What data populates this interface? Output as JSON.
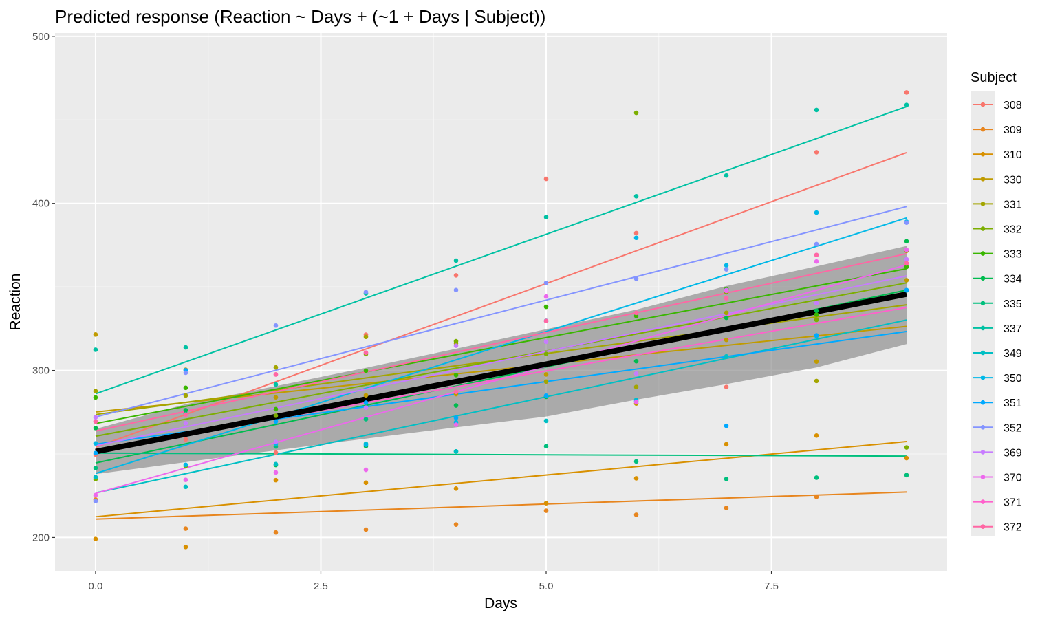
{
  "chart_data": {
    "type": "line",
    "title": "Predicted response (Reaction ~ Days + (~1 + Days | Subject))",
    "xlabel": "Days",
    "ylabel": "Reaction",
    "xlim": [
      -0.45,
      9.45
    ],
    "ylim": [
      180,
      502
    ],
    "x_ticks": [
      0,
      2.5,
      5,
      7.5
    ],
    "x_tick_labels": [
      "0.0",
      "2.5",
      "5.0",
      "7.5"
    ],
    "y_ticks": [
      200,
      300,
      400,
      500
    ],
    "y_tick_labels": [
      "200",
      "300",
      "400",
      "500"
    ],
    "grid": true,
    "legend_position": "right",
    "legend_title": "Subject",
    "x": [
      0,
      1,
      2,
      3,
      4,
      5,
      6,
      7,
      8,
      9
    ],
    "fixed_effect": {
      "intercept": 251.4,
      "slope": 10.47
    },
    "confidence_band": {
      "lower": [
        237.9,
        245.1,
        252.2,
        259.2,
        265.9,
        272.4,
        282.5,
        291.8,
        301.8,
        315.8
      ],
      "upper": [
        264.9,
        279.8,
        290.6,
        301.6,
        313.0,
        324.7,
        336.4,
        350.5,
        362.3,
        374.5
      ]
    },
    "series": [
      {
        "name": "308",
        "color": "#F8766D",
        "intercept": 254.0,
        "slope": 19.6,
        "values": [
          249.6,
          258.7,
          250.8,
          321.4,
          356.9,
          414.7,
          382.2,
          290.1,
          430.6,
          466.4
        ]
      },
      {
        "name": "309",
        "color": "#E7851E",
        "intercept": 211.0,
        "slope": 1.8,
        "values": [
          222.7,
          205.3,
          203.0,
          204.7,
          207.7,
          216.0,
          213.6,
          217.7,
          224.3,
          237.3
        ]
      },
      {
        "name": "310",
        "color": "#D89000",
        "intercept": 212.4,
        "slope": 5.0,
        "values": [
          199.1,
          194.3,
          234.3,
          232.8,
          229.3,
          220.5,
          235.4,
          255.8,
          261.0,
          247.5
        ]
      },
      {
        "name": "330",
        "color": "#C09B00",
        "intercept": 275.1,
        "slope": 5.7,
        "values": [
          321.5,
          300.4,
          283.9,
          285.1,
          285.8,
          297.6,
          280.2,
          318.3,
          305.3,
          354.0
        ]
      },
      {
        "name": "331",
        "color": "#A3A500",
        "intercept": 273.6,
        "slope": 7.3,
        "values": [
          287.6,
          285.0,
          301.8,
          320.1,
          316.3,
          293.3,
          290.1,
          334.5,
          293.7,
          371.6
        ]
      },
      {
        "name": "332",
        "color": "#7CAE00",
        "intercept": 260.6,
        "slope": 10.2,
        "values": [
          234.9,
          242.8,
          272.9,
          309.8,
          317.5,
          309.9,
          454.2,
          346.8,
          330.3,
          253.9
        ]
      },
      {
        "name": "333",
        "color": "#39B600",
        "intercept": 268.2,
        "slope": 10.3,
        "values": [
          283.8,
          289.6,
          276.8,
          299.8,
          297.2,
          338.1,
          332.6,
          348.8,
          333.4,
          362.0
        ]
      },
      {
        "name": "334",
        "color": "#00BB4E",
        "intercept": 244.6,
        "slope": 11.5,
        "values": [
          265.5,
          276.2,
          243.4,
          254.7,
          279.0,
          284.2,
          305.5,
          331.5,
          335.8,
          377.3
        ]
      },
      {
        "name": "335",
        "color": "#00BF7D",
        "intercept": 250.5,
        "slope": -0.2,
        "values": [
          241.6,
          273.9,
          254.5,
          270.8,
          251.5,
          254.6,
          245.5,
          235.0,
          235.8,
          237.3
        ]
      },
      {
        "name": "337",
        "color": "#00C1A3",
        "intercept": 286.0,
        "slope": 19.1,
        "values": [
          312.4,
          313.8,
          291.6,
          346.1,
          365.7,
          391.8,
          404.3,
          416.7,
          455.9,
          458.9
        ]
      },
      {
        "name": "349",
        "color": "#00BFC4",
        "intercept": 226.7,
        "slope": 11.5,
        "values": [
          236.1,
          230.3,
          243.9,
          256.1,
          251.5,
          269.8,
          282.4,
          308.4,
          320.7,
          347.9
        ]
      },
      {
        "name": "350",
        "color": "#00B8E7",
        "intercept": 238.3,
        "slope": 17.0,
        "values": [
          256.3,
          243.5,
          256.0,
          255.5,
          268.9,
          329.7,
          379.4,
          362.9,
          394.5,
          389.0
        ]
      },
      {
        "name": "351",
        "color": "#00A9FF",
        "intercept": 255.8,
        "slope": 7.5,
        "values": [
          250.5,
          300.1,
          269.4,
          280.7,
          271.6,
          284.9,
          281.6,
          266.8,
          321.0,
          348.1
        ]
      },
      {
        "name": "352",
        "color": "#8494FF",
        "intercept": 272.1,
        "slope": 14.0,
        "values": [
          221.7,
          298.6,
          326.9,
          346.9,
          348.1,
          352.4,
          354.9,
          360.5,
          375.6,
          388.5
        ]
      },
      {
        "name": "369",
        "color": "#C77CFF",
        "intercept": 254.9,
        "slope": 11.3,
        "values": [
          271.9,
          268.4,
          257.2,
          277.7,
          314.8,
          317.2,
          298.1,
          348.1,
          340.3,
          366.5
        ]
      },
      {
        "name": "370",
        "color": "#ED68ED",
        "intercept": 226.4,
        "slope": 15.2,
        "values": [
          225.3,
          234.5,
          238.9,
          240.5,
          267.5,
          344.2,
          281.1,
          347.6,
          365.2,
          372.2
        ]
      },
      {
        "name": "371",
        "color": "#FF61CC",
        "intercept": 252.2,
        "slope": 9.5,
        "values": [
          269.4,
          273.5,
          297.6,
          310.6,
          287.2,
          329.6,
          334.5,
          343.2,
          369.1,
          364.1
        ]
      },
      {
        "name": "372",
        "color": "#FF67A4",
        "intercept": 263.7,
        "slope": 11.8,
        "values": [
          269.4,
          273.5,
          297.6,
          310.6,
          287.2,
          329.6,
          334.5,
          343.2,
          369.1,
          364.1
        ]
      }
    ]
  }
}
